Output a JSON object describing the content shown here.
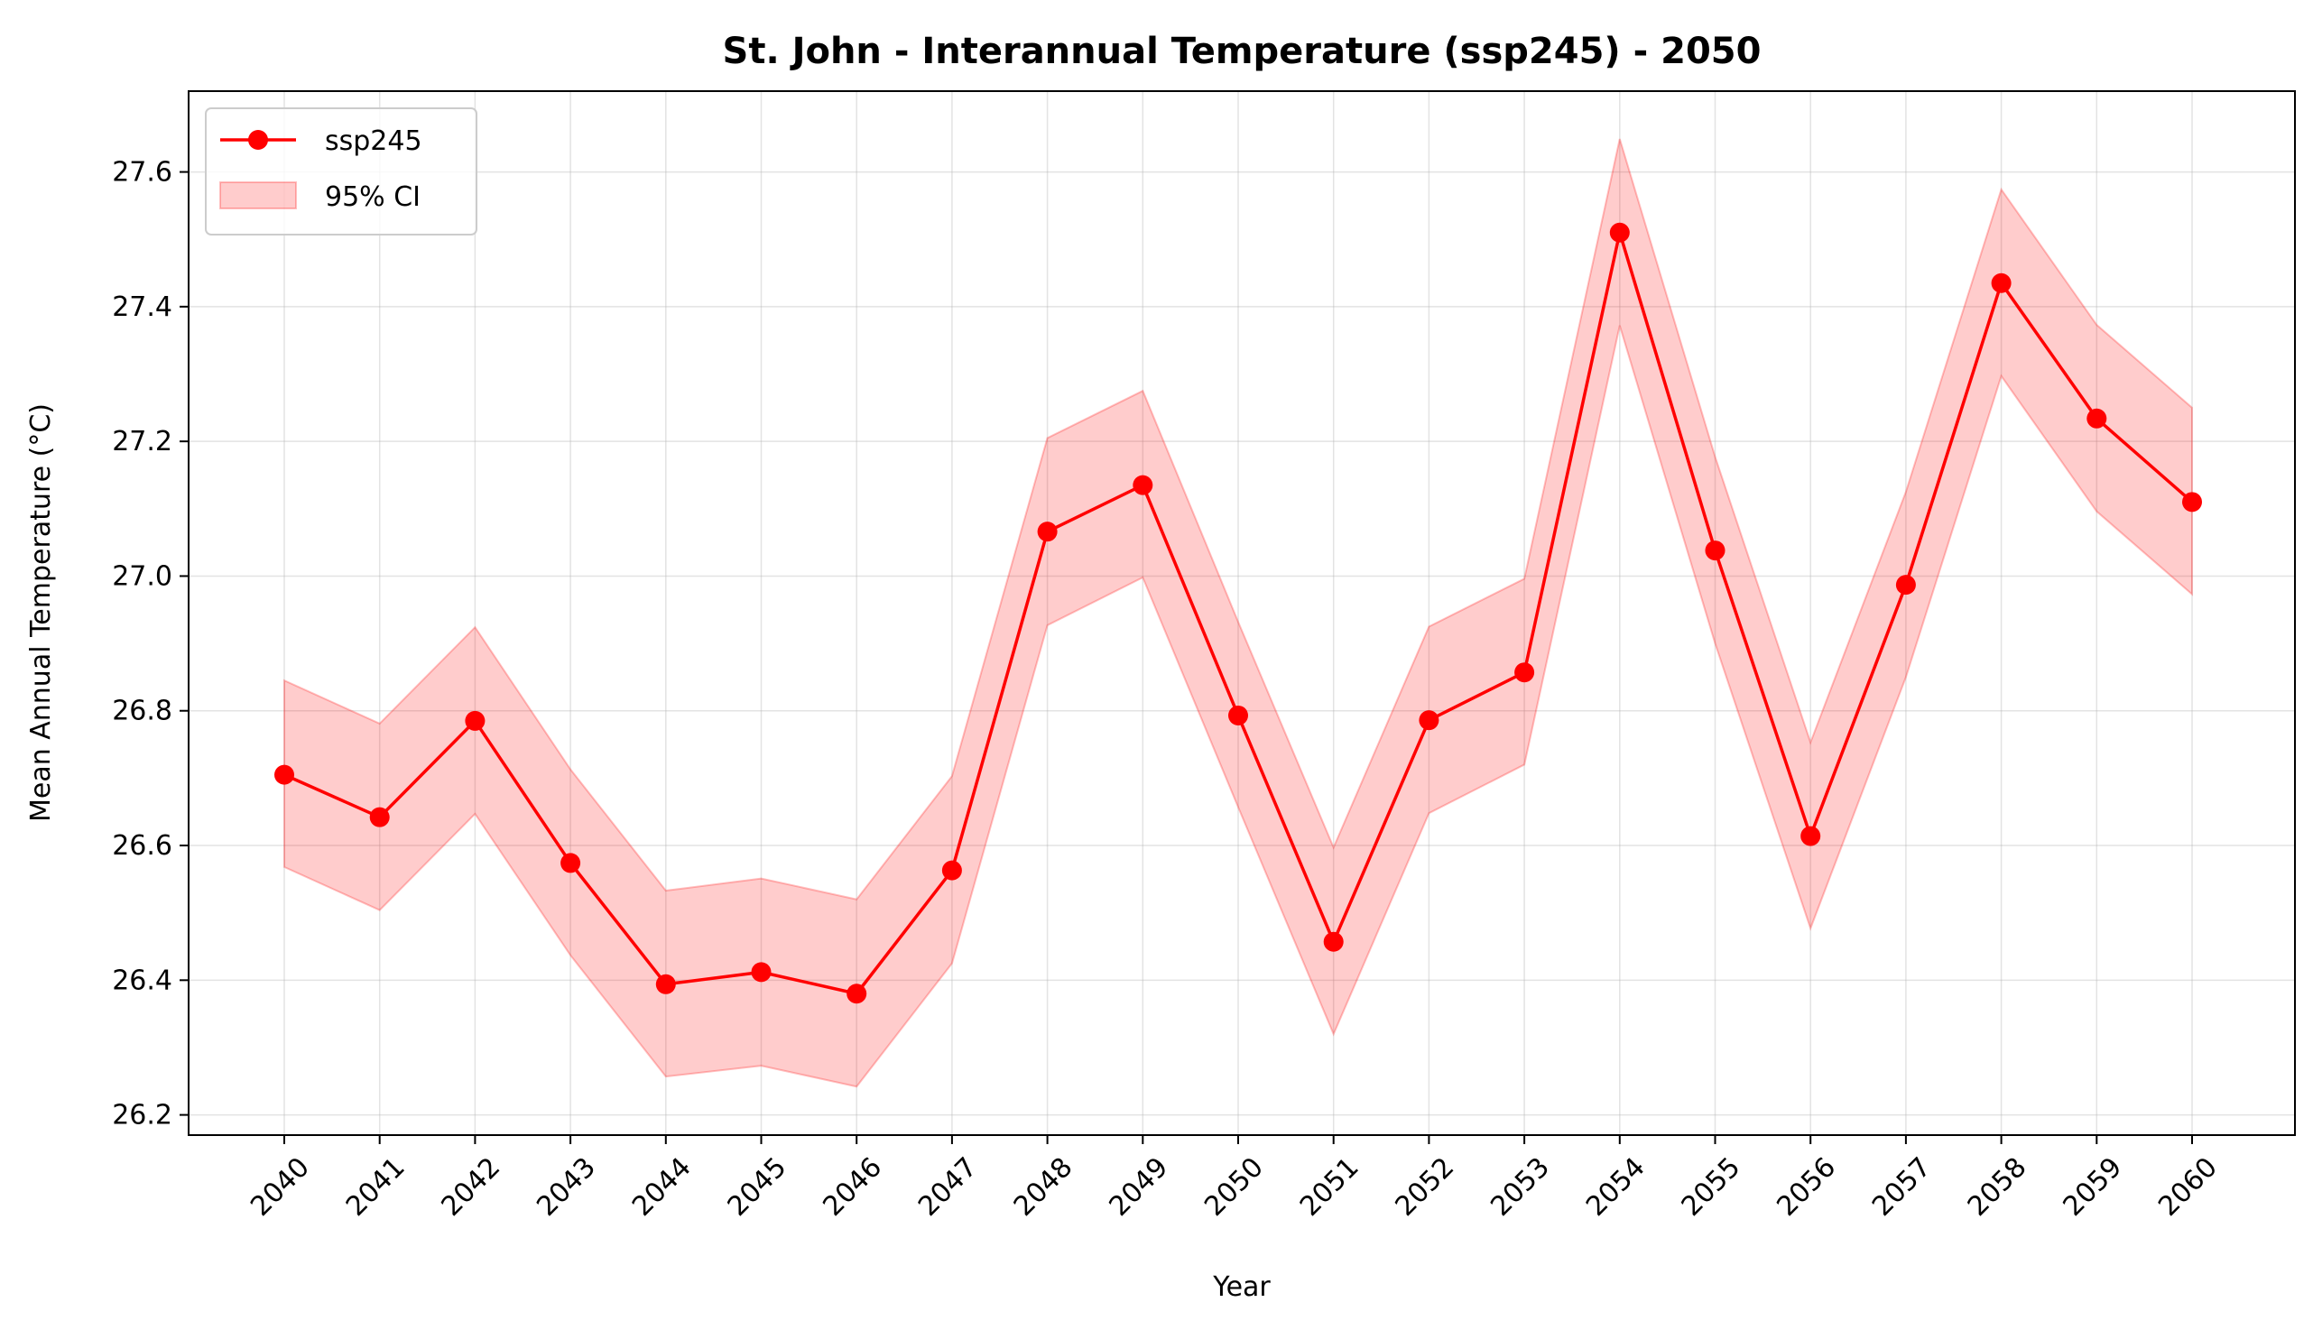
{
  "chart_data": {
    "type": "line",
    "title": "St. John - Interannual Temperature (ssp245) - 2050",
    "xlabel": "Year",
    "ylabel": "Mean Annual Temperature (°C)",
    "x": [
      "2040",
      "2041",
      "2042",
      "2043",
      "2044",
      "2045",
      "2046",
      "2047",
      "2048",
      "2049",
      "2050",
      "2051",
      "2052",
      "2053",
      "2054",
      "2055",
      "2056",
      "2057",
      "2058",
      "2059",
      "2060"
    ],
    "ylim": [
      26.17,
      27.72
    ],
    "yticks": [
      "26.2",
      "26.4",
      "26.6",
      "26.8",
      "27.0",
      "27.2",
      "27.4",
      "27.6"
    ],
    "grid": true,
    "legend_position": "upper left",
    "series": [
      {
        "name": "ssp245",
        "color": "#ff0000",
        "marker": "circle",
        "values": [
          26.705,
          26.642,
          26.785,
          26.574,
          26.394,
          26.412,
          26.38,
          26.563,
          27.066,
          27.135,
          26.793,
          26.457,
          26.786,
          26.857,
          27.51,
          27.038,
          26.614,
          26.987,
          27.435,
          27.234,
          27.11
        ]
      }
    ],
    "band": {
      "name": "95% CI",
      "color": "#ff0000",
      "opacity": 0.2,
      "lower": [
        26.568,
        26.504,
        26.647,
        26.437,
        26.257,
        26.273,
        26.242,
        26.425,
        26.927,
        26.998,
        26.657,
        26.32,
        26.648,
        26.72,
        27.372,
        26.9,
        26.477,
        26.85,
        27.297,
        27.096,
        26.973
      ],
      "upper": [
        26.845,
        26.781,
        26.924,
        26.713,
        26.533,
        26.551,
        26.52,
        26.703,
        27.205,
        27.275,
        26.932,
        26.597,
        26.925,
        26.996,
        27.649,
        27.177,
        26.753,
        27.125,
        27.574,
        27.373,
        27.25
      ]
    }
  }
}
